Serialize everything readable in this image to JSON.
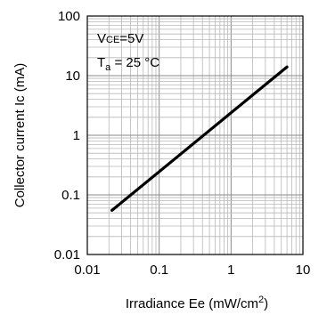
{
  "chart_data": {
    "type": "line",
    "xscale": "log",
    "yscale": "log",
    "xlim": [
      0.01,
      10
    ],
    "ylim": [
      0.01,
      100
    ],
    "x_ticks": [
      "0.01",
      "0.1",
      "1",
      "10"
    ],
    "y_ticks": [
      "100",
      "10",
      "1",
      "0.1",
      "0.01"
    ],
    "xlabel": {
      "main": "Irradiance Ee (mW/cm",
      "sup": "2",
      "end": ")"
    },
    "ylabel": "Collector current Ic (mA)",
    "grid": true,
    "annotations": {
      "vce": {
        "main": "V",
        "sub": "CE",
        "rest": "=5V"
      },
      "ta": {
        "main": "T",
        "sub": "a",
        "rest": " = 25 °C"
      }
    },
    "series": [
      {
        "color": "#000000",
        "points": [
          [
            0.022,
            0.055
          ],
          [
            6,
            14
          ]
        ]
      }
    ]
  }
}
